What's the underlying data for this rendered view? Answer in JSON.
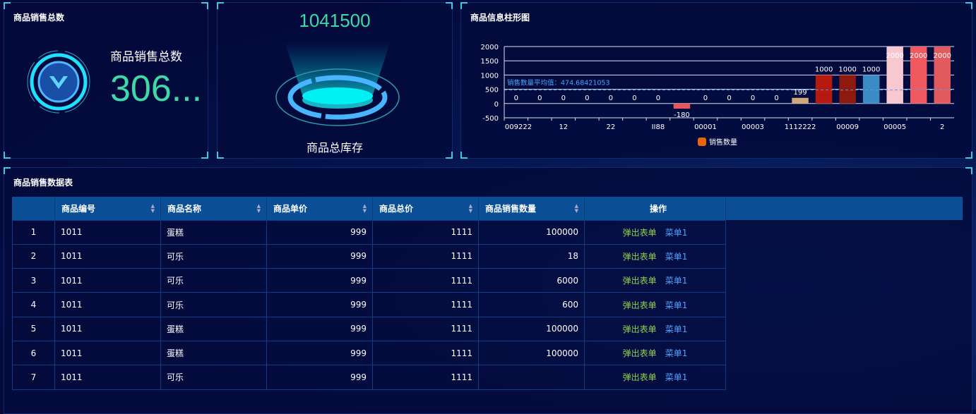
{
  "panel_sales": {
    "title": "商品销售总数",
    "label": "商品销售总数",
    "value": "306..."
  },
  "panel_stock": {
    "value": "1041500",
    "label": "商品总库存"
  },
  "panel_chart": {
    "title": "商品信息柱形图"
  },
  "chart_data": {
    "type": "bar",
    "title": "商品信息柱形图",
    "categories": [
      "009222",
      "",
      "12",
      "",
      "22",
      "",
      "II88",
      "",
      "00001",
      "",
      "00003",
      "",
      "1112222",
      "",
      "00009",
      "",
      "00005",
      "",
      "2"
    ],
    "values": [
      0,
      0,
      0,
      0,
      0,
      0,
      0,
      -180,
      0,
      0,
      0,
      0,
      199,
      1000,
      1000,
      1000,
      2000,
      2000,
      2000
    ],
    "colors": [
      "#e8555d",
      "#e8555d",
      "#e8555d",
      "#e8555d",
      "#e8555d",
      "#e8555d",
      "#e8555d",
      "#e8555d",
      "#e8555d",
      "#e8555d",
      "#e8555d",
      "#e8555d",
      "#d2a679",
      "#b5190f",
      "#8e1a0e",
      "#3d8bc4",
      "#f8c8d0",
      "#f0595f",
      "#e05a5e"
    ],
    "ylim": [
      -500,
      2000
    ],
    "yticks": [
      2000,
      1500,
      1000,
      500,
      0,
      -500
    ],
    "average_label": "销售数量平均值：474.68421053",
    "average": 474.68421053,
    "legend": [
      {
        "name": "销售数量",
        "color": "#e8650a"
      }
    ],
    "legend_position": "bottom",
    "grid": true
  },
  "table": {
    "title": "商品销售数据表",
    "headers": [
      "",
      "商品编号",
      "商品名称",
      "商品单价",
      "商品总价",
      "商品销售数量",
      "操作"
    ],
    "rows": [
      [
        "1",
        "1011",
        "蛋糕",
        "999",
        "1111",
        "100000"
      ],
      [
        "2",
        "1011",
        "可乐",
        "999",
        "1111",
        "18"
      ],
      [
        "3",
        "1011",
        "可乐",
        "999",
        "1111",
        "6000"
      ],
      [
        "4",
        "1011",
        "可乐",
        "999",
        "1111",
        "600"
      ],
      [
        "5",
        "1011",
        "蛋糕",
        "999",
        "1111",
        "100000"
      ],
      [
        "6",
        "1011",
        "蛋糕",
        "999",
        "1111",
        "100000"
      ],
      [
        "7",
        "1011",
        "可乐",
        "999",
        "1111",
        ""
      ]
    ],
    "action1": "弹出表单",
    "action2": "菜单1"
  }
}
